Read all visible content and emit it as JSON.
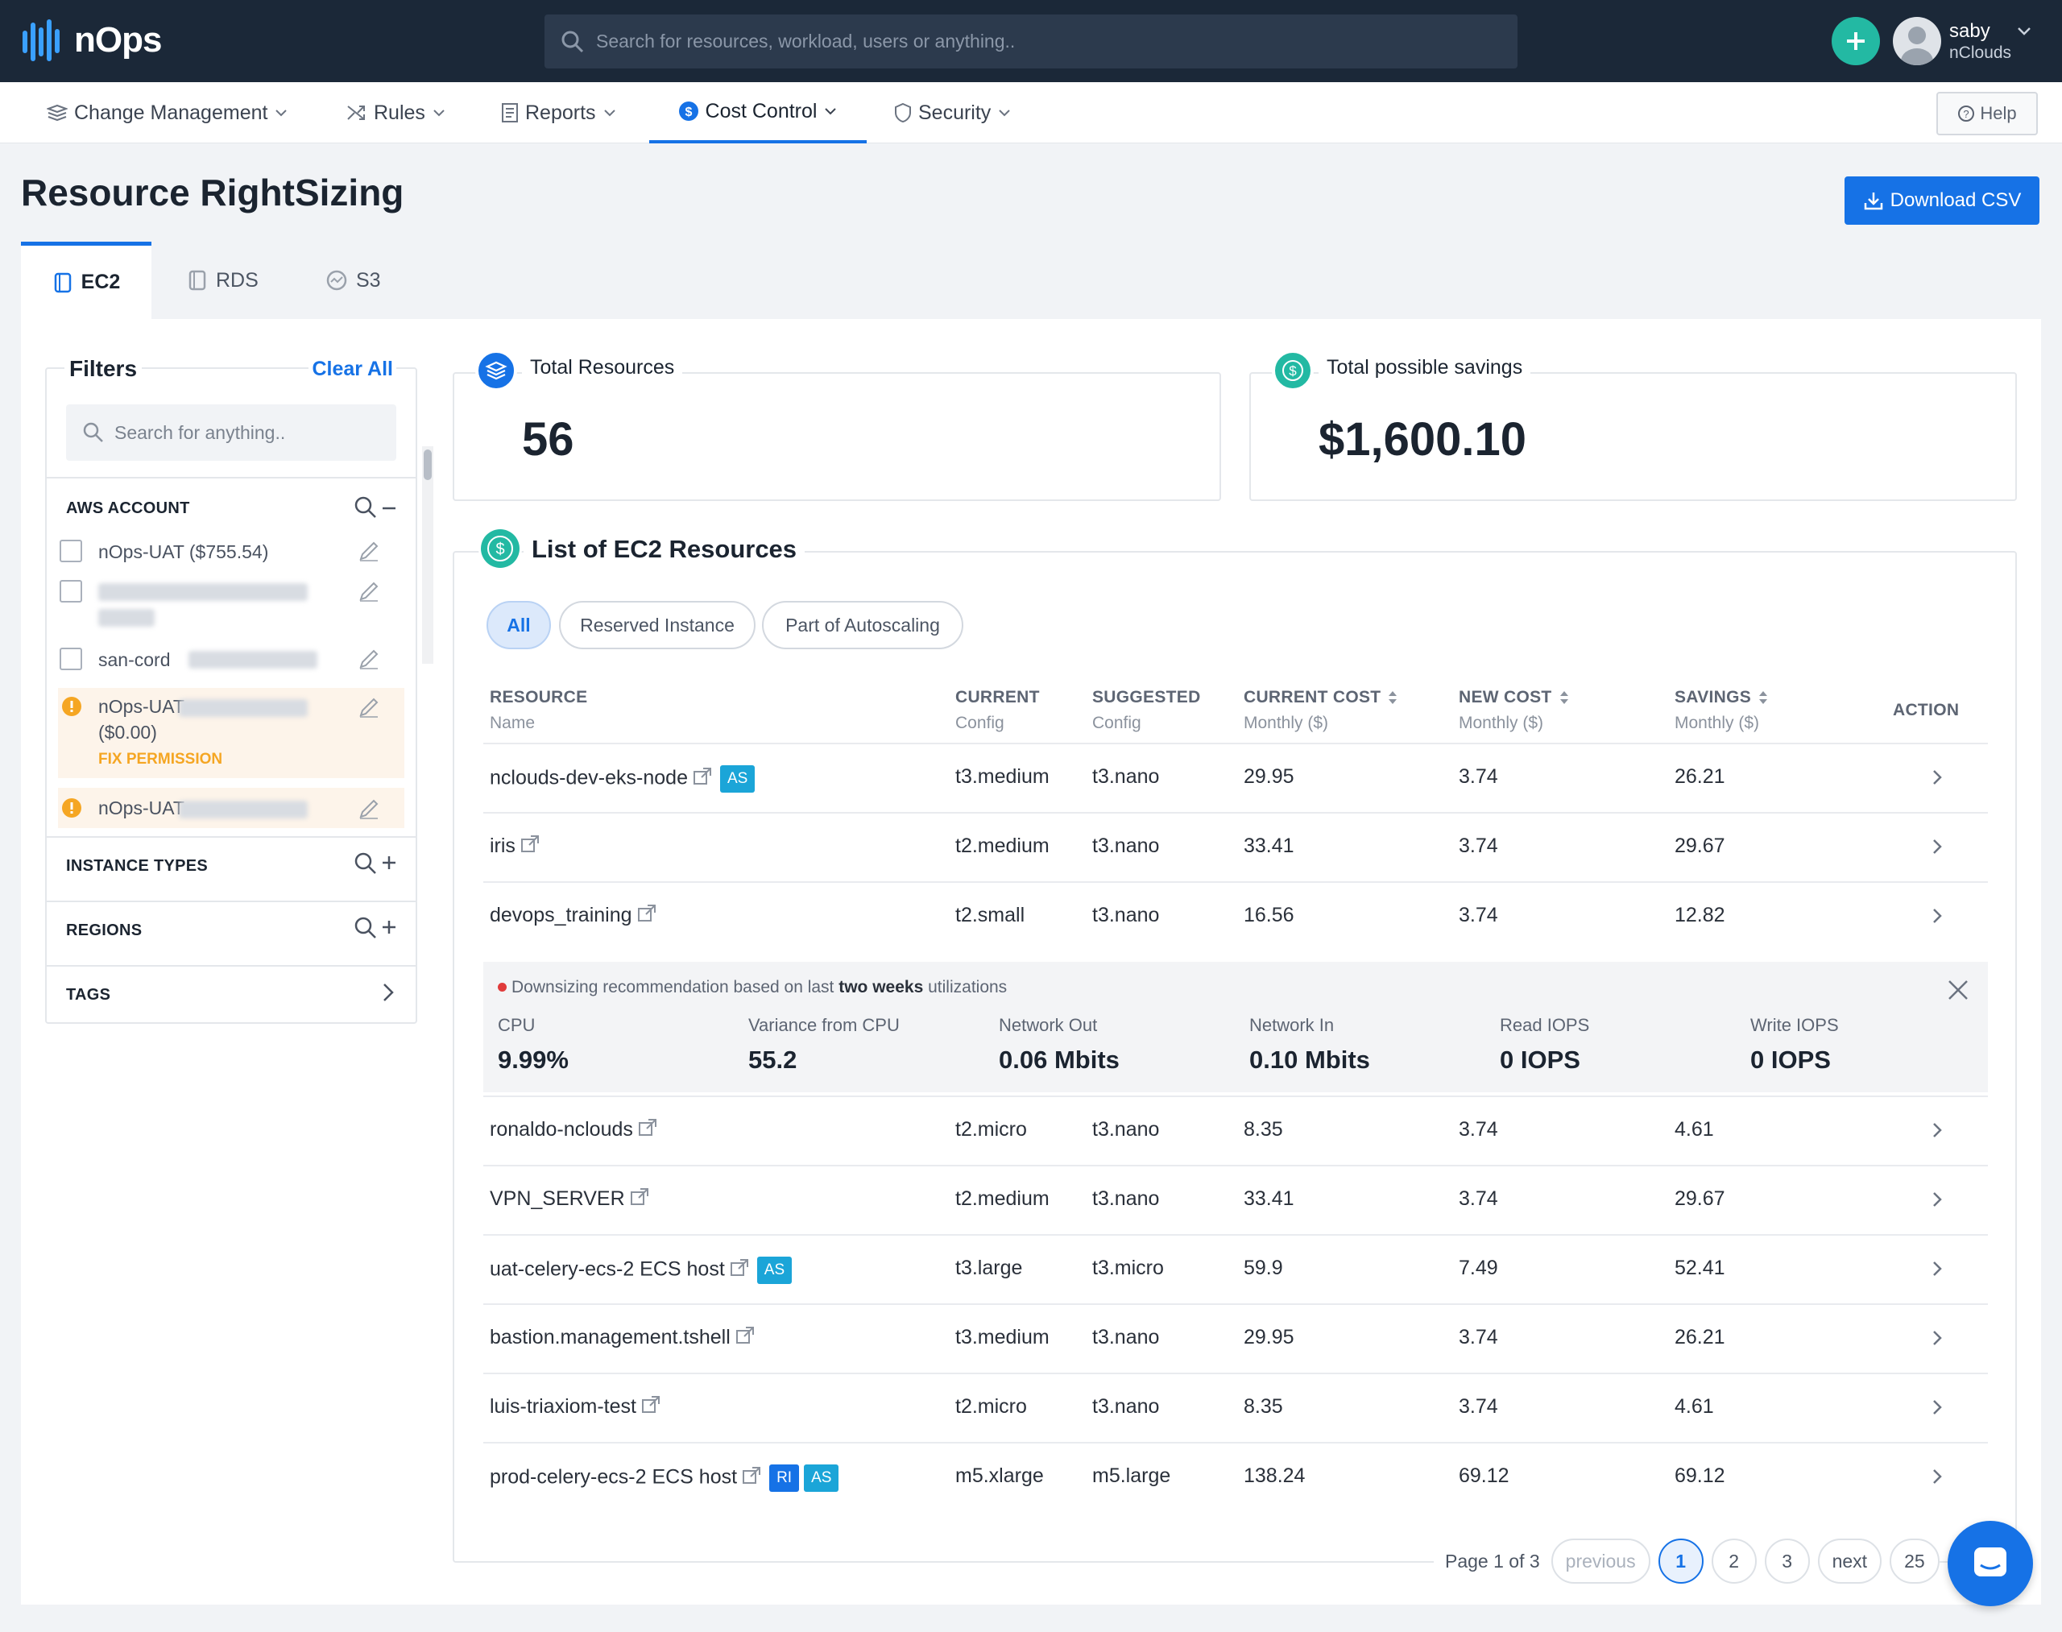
{
  "app": {
    "logo_text": "nOps"
  },
  "topbar": {
    "search_placeholder": "Search for resources, workload, users or anything..",
    "user_name": "saby",
    "user_org": "nClouds"
  },
  "nav": {
    "items": [
      {
        "label": "Change Management"
      },
      {
        "label": "Rules"
      },
      {
        "label": "Reports"
      },
      {
        "label": "Cost Control",
        "active": true
      },
      {
        "label": "Security"
      }
    ],
    "help_label": "Help"
  },
  "page": {
    "title": "Resource RightSizing",
    "download_label": "Download CSV",
    "tabs": [
      {
        "label": "EC2",
        "active": true
      },
      {
        "label": "RDS"
      },
      {
        "label": "S3"
      }
    ]
  },
  "filters": {
    "title": "Filters",
    "clear_all": "Clear All",
    "search_placeholder": "Search for anything..",
    "aws_account_heading": "AWS ACCOUNT",
    "accounts": [
      {
        "label": "nOps-UAT ($755.54)"
      },
      {
        "label": ""
      },
      {
        "label": "san-cord"
      },
      {
        "label": "nOps-UAT",
        "sub": "($0.00)",
        "warning": "FIX PERMISSION"
      },
      {
        "label": "nOps-UAT"
      }
    ],
    "instance_types_heading": "INSTANCE TYPES",
    "regions_heading": "REGIONS",
    "tags_heading": "TAGS"
  },
  "stats": {
    "total_resources_label": "Total Resources",
    "total_resources_value": "56",
    "total_savings_label": "Total possible savings",
    "total_savings_value": "$1,600.10"
  },
  "list": {
    "title": "List of EC2 Resources",
    "filters": [
      {
        "label": "All",
        "active": true
      },
      {
        "label": "Reserved Instance"
      },
      {
        "label": "Part of Autoscaling"
      }
    ],
    "columns": [
      {
        "label": "RESOURCE",
        "sub": "Name"
      },
      {
        "label": "CURRENT",
        "sub": "Config"
      },
      {
        "label": "SUGGESTED",
        "sub": "Config"
      },
      {
        "label": "CURRENT COST",
        "sub": "Monthly ($)"
      },
      {
        "label": "NEW COST",
        "sub": "Monthly ($)"
      },
      {
        "label": "SAVINGS",
        "sub": "Monthly ($)"
      },
      {
        "label": "ACTION",
        "sub": ""
      }
    ],
    "rows": [
      {
        "name": "nclouds-dev-eks-node",
        "badges": [
          "AS"
        ],
        "current": "t3.medium",
        "suggested": "t3.nano",
        "current_cost": "29.95",
        "new_cost": "3.74",
        "savings": "26.21"
      },
      {
        "name": "iris",
        "badges": [],
        "current": "t2.medium",
        "suggested": "t3.nano",
        "current_cost": "33.41",
        "new_cost": "3.74",
        "savings": "29.67"
      },
      {
        "name": "devops_training",
        "badges": [],
        "current": "t2.small",
        "suggested": "t3.nano",
        "current_cost": "16.56",
        "new_cost": "3.74",
        "savings": "12.82"
      },
      {
        "name": "ronaldo-nclouds",
        "badges": [],
        "current": "t2.micro",
        "suggested": "t3.nano",
        "current_cost": "8.35",
        "new_cost": "3.74",
        "savings": "4.61"
      },
      {
        "name": "VPN_SERVER",
        "badges": [],
        "current": "t2.medium",
        "suggested": "t3.nano",
        "current_cost": "33.41",
        "new_cost": "3.74",
        "savings": "29.67"
      },
      {
        "name": "uat-celery-ecs-2 ECS host",
        "badges": [
          "AS"
        ],
        "current": "t3.large",
        "suggested": "t3.micro",
        "current_cost": "59.9",
        "new_cost": "7.49",
        "savings": "52.41"
      },
      {
        "name": "bastion.management.tshell",
        "badges": [],
        "current": "t3.medium",
        "suggested": "t3.nano",
        "current_cost": "29.95",
        "new_cost": "3.74",
        "savings": "26.21"
      },
      {
        "name": "luis-triaxiom-test",
        "badges": [],
        "current": "t2.micro",
        "suggested": "t3.nano",
        "current_cost": "8.35",
        "new_cost": "3.74",
        "savings": "4.61"
      },
      {
        "name": "prod-celery-ecs-2 ECS host",
        "badges": [
          "RI",
          "AS"
        ],
        "current": "m5.xlarge",
        "suggested": "m5.large",
        "current_cost": "138.24",
        "new_cost": "69.12",
        "savings": "69.12"
      }
    ],
    "detail": {
      "note_prefix": "Downsizing recommendation based on last",
      "note_bold": "two weeks",
      "note_suffix": "utilizations",
      "metrics": [
        {
          "label": "CPU",
          "value": "9.99%"
        },
        {
          "label": "Variance from CPU",
          "value": "55.2"
        },
        {
          "label": "Network Out",
          "value": "0.06 Mbits"
        },
        {
          "label": "Network In",
          "value": "0.10 Mbits"
        },
        {
          "label": "Read IOPS",
          "value": "0 IOPS"
        },
        {
          "label": "Write IOPS",
          "value": "0 IOPS"
        }
      ]
    }
  },
  "pagination": {
    "info": "Page 1 of 3",
    "previous": "previous",
    "pages": [
      "1",
      "2",
      "3"
    ],
    "next": "next",
    "page_size": "25"
  },
  "colors": {
    "topbar_bg": "#1b2838",
    "accent": "#1672e6",
    "teal": "#23b9a3",
    "warning": "#f5a623"
  }
}
